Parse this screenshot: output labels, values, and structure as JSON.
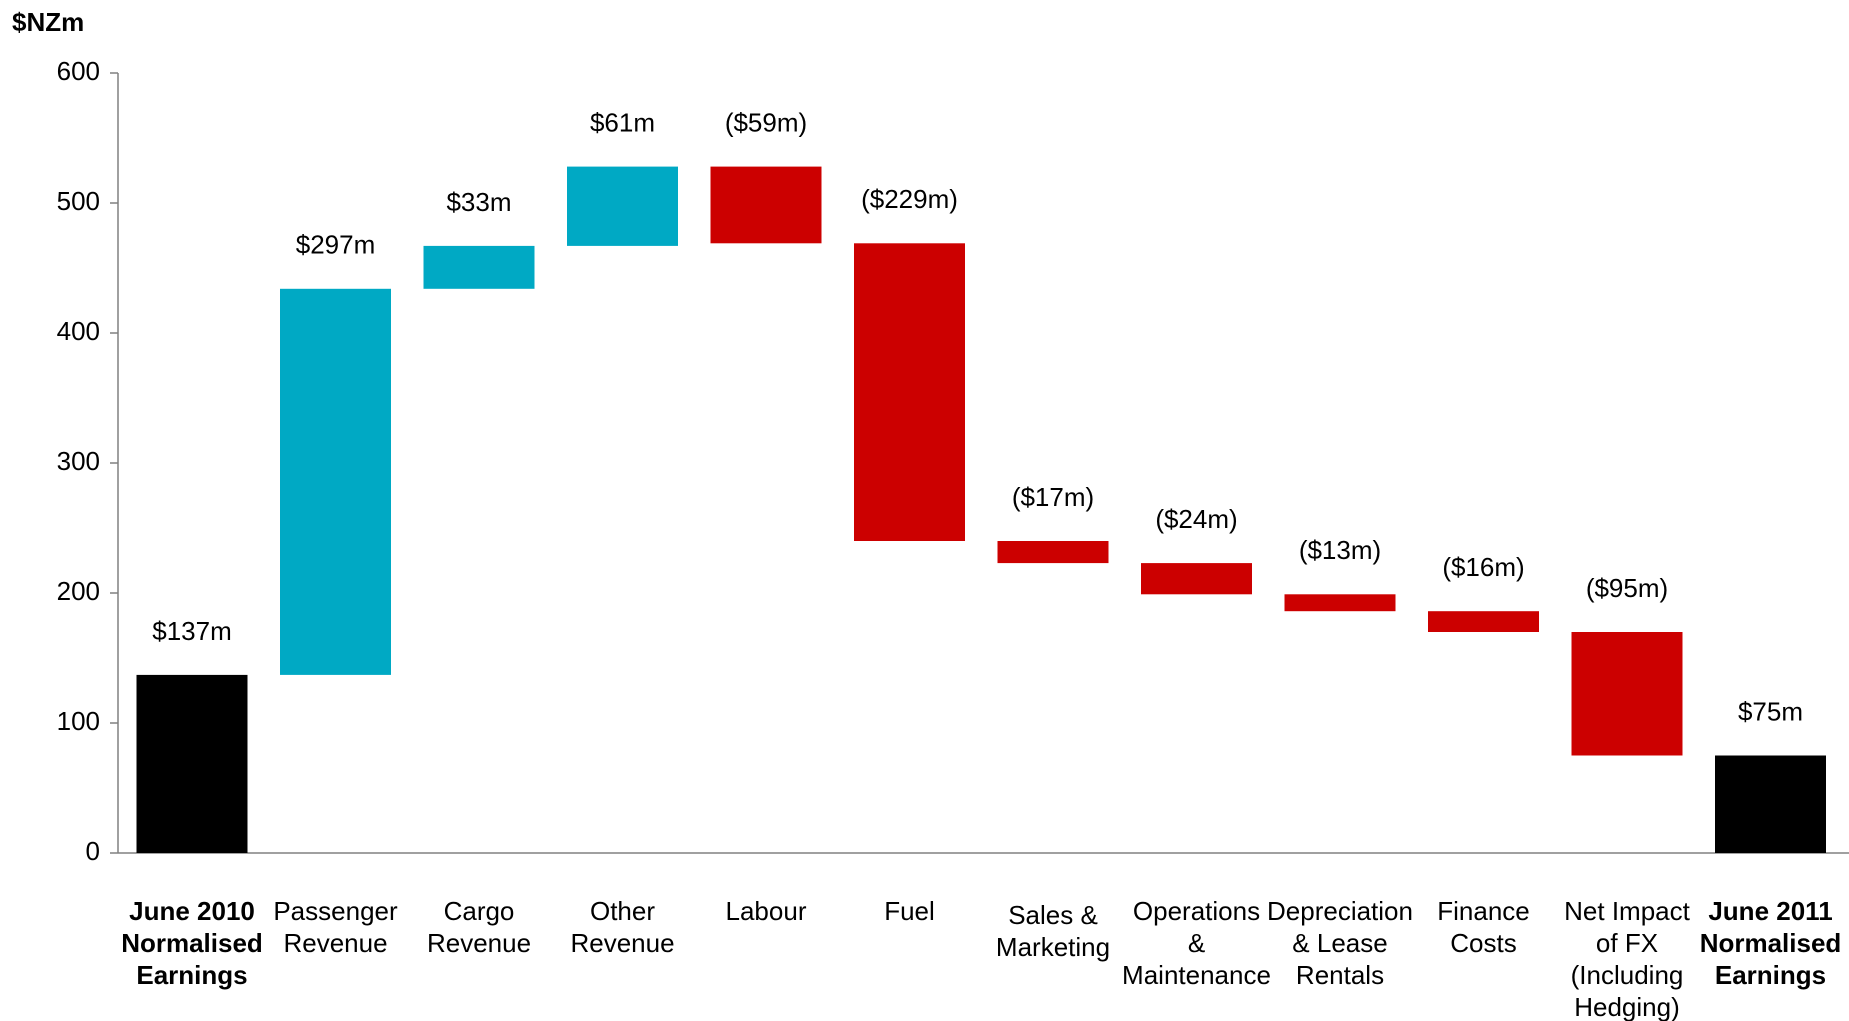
{
  "chart_data": {
    "type": "waterfall",
    "y_label": "$NZm",
    "categories": [
      [
        "June 2010",
        "Normalised",
        "Earnings"
      ],
      [
        "Passenger",
        "Revenue"
      ],
      [
        "Cargo",
        "Revenue"
      ],
      [
        "Other",
        "Revenue"
      ],
      [
        "Labour"
      ],
      [
        "Fuel"
      ],
      [
        "Sales &",
        "Marketing"
      ],
      [
        "Operations",
        "&",
        "Maintenance"
      ],
      [
        "Depreciation",
        "& Lease",
        "Rentals"
      ],
      [
        "Finance",
        "Costs"
      ],
      [
        "Net Impact",
        "of FX",
        "(Including",
        "Hedging)"
      ],
      [
        "June 2011",
        "Normalised",
        "Earnings"
      ]
    ],
    "values": [
      137,
      297,
      33,
      61,
      -59,
      -229,
      -17,
      -24,
      -13,
      -16,
      -95,
      75
    ],
    "value_labels": [
      "$137m",
      "$297m",
      "$33m",
      "$61m",
      "($59m)",
      "($229m)",
      "($17m)",
      "($24m)",
      "($13m)",
      "($16m)",
      "($95m)",
      "$75m"
    ],
    "is_total": [
      true,
      false,
      false,
      false,
      false,
      false,
      false,
      false,
      false,
      false,
      false,
      true
    ],
    "colors": {
      "total": "#000000",
      "increase": "#00a9c4",
      "decrease": "#cc0000"
    },
    "ylim": [
      0,
      600
    ],
    "yticks": [
      0,
      100,
      200,
      300,
      400,
      500,
      600
    ],
    "grid": false
  }
}
